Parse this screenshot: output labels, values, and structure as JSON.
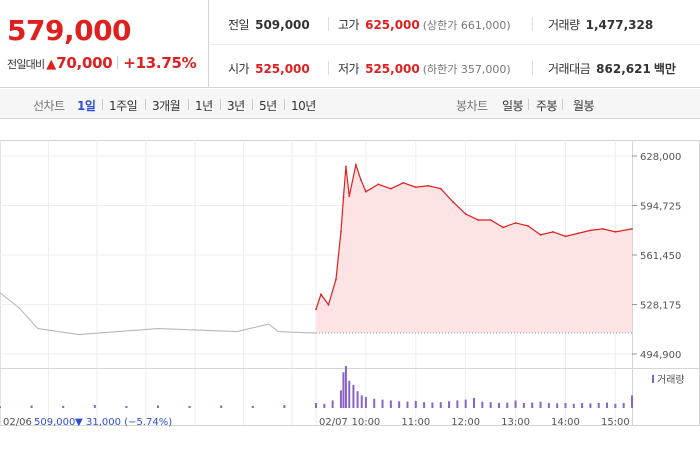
{
  "quote": {
    "price": "579,000",
    "change_label": "전일대비",
    "change_arrow": "▲",
    "change_amount": "70,000",
    "change_rate": "+13.75%"
  },
  "stats": {
    "prev_close_label": "전일",
    "prev_close": "509,000",
    "high_label": "고가",
    "high": "625,000",
    "upper_limit": "(상한가 661,000)",
    "volume_label": "거래량",
    "volume": "1,477,328",
    "open_label": "시가",
    "open": "525,000",
    "low_label": "저가",
    "low": "525,000",
    "lower_limit": "(하한가 357,000)",
    "turnover_label": "거래대금",
    "turnover": "862,621",
    "turnover_unit": "백만"
  },
  "periods": {
    "label": "선차트",
    "items": [
      "1일",
      "1주일",
      "3개월",
      "1년",
      "3년",
      "5년",
      "10년"
    ],
    "active": "1일"
  },
  "candles": {
    "label": "봉차트",
    "items": [
      "일봉",
      "주봉",
      "월봉"
    ]
  },
  "colors": {
    "up": "#e01f1f",
    "down": "#2d4fd6",
    "area_fill": "#fde3e3",
    "prev_day_line": "#b8b8b8",
    "volume_bar": "#8a63c6"
  },
  "chart_data": {
    "type": "line",
    "ylim": [
      494900,
      628000
    ],
    "y_ticks": [
      "628,000",
      "594,725",
      "561,450",
      "528,175",
      "494,900"
    ],
    "reference_price": 509000,
    "volume_legend": "거래량",
    "prev_day": {
      "date_label": "02/06",
      "close_label": "509,000",
      "change_arrow": "▼",
      "change_label": "31,000 (−5.74%)",
      "points": [
        [
          0.0,
          536000
        ],
        [
          0.06,
          526000
        ],
        [
          0.12,
          512000
        ],
        [
          0.25,
          508000
        ],
        [
          0.5,
          512000
        ],
        [
          0.75,
          510000
        ],
        [
          0.85,
          515000
        ],
        [
          0.88,
          510000
        ],
        [
          1.0,
          509000
        ]
      ]
    },
    "intraday": {
      "date_label": "02/07",
      "x_ticks": [
        "10:00",
        "11:00",
        "12:00",
        "13:00",
        "14:00",
        "15:00"
      ],
      "points": [
        [
          "09:00",
          525000
        ],
        [
          "09:06",
          535000
        ],
        [
          "09:15",
          528000
        ],
        [
          "09:24",
          545000
        ],
        [
          "09:30",
          577000
        ],
        [
          "09:33",
          600000
        ],
        [
          "09:36",
          621000
        ],
        [
          "09:40",
          601000
        ],
        [
          "09:48",
          622000
        ],
        [
          "09:54",
          612000
        ],
        [
          "10:00",
          604000
        ],
        [
          "10:15",
          609000
        ],
        [
          "10:30",
          606000
        ],
        [
          "10:45",
          610000
        ],
        [
          "11:00",
          607000
        ],
        [
          "11:15",
          608000
        ],
        [
          "11:30",
          606000
        ],
        [
          "11:45",
          597000
        ],
        [
          "12:00",
          589000
        ],
        [
          "12:15",
          585000
        ],
        [
          "12:30",
          585000
        ],
        [
          "12:45",
          580000
        ],
        [
          "13:00",
          583000
        ],
        [
          "13:15",
          581000
        ],
        [
          "13:30",
          575000
        ],
        [
          "13:45",
          577000
        ],
        [
          "14:00",
          574000
        ],
        [
          "14:15",
          576000
        ],
        [
          "14:30",
          578000
        ],
        [
          "14:45",
          579000
        ],
        [
          "15:00",
          577000
        ],
        [
          "15:20",
          579000
        ]
      ]
    },
    "volume": [
      [
        0.0,
        0.04
      ],
      [
        0.1,
        0.06
      ],
      [
        0.2,
        0.05
      ],
      [
        0.3,
        0.07
      ],
      [
        0.4,
        0.05
      ],
      [
        0.5,
        0.06
      ],
      [
        0.6,
        0.05
      ],
      [
        0.7,
        0.06
      ],
      [
        0.8,
        0.05
      ],
      [
        0.9,
        0.07
      ],
      [
        1.0,
        0.05
      ],
      [
        "09:00",
        0.12
      ],
      [
        "09:10",
        0.1
      ],
      [
        "09:20",
        0.18
      ],
      [
        "09:30",
        0.42
      ],
      [
        "09:33",
        0.85
      ],
      [
        "09:36",
        1.0
      ],
      [
        "09:40",
        0.65
      ],
      [
        "09:45",
        0.55
      ],
      [
        "09:50",
        0.4
      ],
      [
        "09:55",
        0.3
      ],
      [
        "10:00",
        0.26
      ],
      [
        "10:10",
        0.22
      ],
      [
        "10:20",
        0.2
      ],
      [
        "10:30",
        0.18
      ],
      [
        "10:40",
        0.16
      ],
      [
        "10:50",
        0.15
      ],
      [
        "11:00",
        0.17
      ],
      [
        "11:10",
        0.14
      ],
      [
        "11:20",
        0.13
      ],
      [
        "11:30",
        0.14
      ],
      [
        "11:40",
        0.16
      ],
      [
        "11:50",
        0.18
      ],
      [
        "12:00",
        0.2
      ],
      [
        "12:10",
        0.24
      ],
      [
        "12:20",
        0.15
      ],
      [
        "12:30",
        0.14
      ],
      [
        "12:40",
        0.12
      ],
      [
        "12:50",
        0.13
      ],
      [
        "13:00",
        0.18
      ],
      [
        "13:10",
        0.12
      ],
      [
        "13:20",
        0.13
      ],
      [
        "13:30",
        0.15
      ],
      [
        "13:40",
        0.12
      ],
      [
        "13:50",
        0.11
      ],
      [
        "14:00",
        0.12
      ],
      [
        "14:10",
        0.1
      ],
      [
        "14:20",
        0.12
      ],
      [
        "14:30",
        0.11
      ],
      [
        "14:40",
        0.12
      ],
      [
        "14:50",
        0.13
      ],
      [
        "15:00",
        0.1
      ],
      [
        "15:10",
        0.12
      ],
      [
        "15:20",
        0.3
      ]
    ]
  }
}
